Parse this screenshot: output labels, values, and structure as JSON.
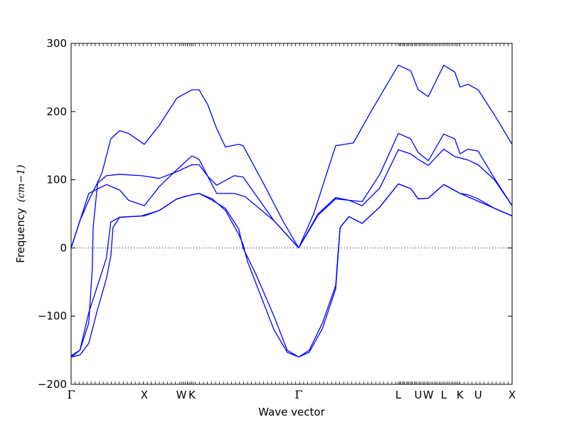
{
  "chart_data": {
    "type": "line",
    "title": "",
    "xlabel": "Wave vector",
    "ylabel": "Frequency",
    "ylabel_unit": "(cm−1)",
    "ylim": [
      -200,
      300
    ],
    "yticks": [
      -200,
      -100,
      0,
      100,
      200,
      300
    ],
    "ytick_labels": [
      "−200",
      "−100",
      "0",
      "100",
      "200",
      "300"
    ],
    "xlim": [
      0,
      1
    ],
    "x_labels": [
      {
        "label": "Γ",
        "x": 0.0
      },
      {
        "label": "X",
        "x": 0.166
      },
      {
        "label": "W",
        "x": 0.25
      },
      {
        "label": "K",
        "x": 0.274
      },
      {
        "label": "Γ",
        "x": 0.516
      },
      {
        "label": "L",
        "x": 0.742
      },
      {
        "label": "U",
        "x": 0.787
      },
      {
        "label": "W",
        "x": 0.81
      },
      {
        "label": "L",
        "x": 0.845
      },
      {
        "label": "K",
        "x": 0.882
      },
      {
        "label": "U",
        "x": 0.923
      },
      {
        "label": "X",
        "x": 1.0
      }
    ],
    "zero_line": true,
    "grid": false,
    "line_color": "#0000ff",
    "series": [
      {
        "values": [
          [
            0.0,
            -160
          ],
          [
            0.02,
            -157
          ],
          [
            0.04,
            -140
          ],
          [
            0.06,
            -90
          ],
          [
            0.08,
            -45
          ],
          [
            0.09,
            -12
          ],
          [
            0.095,
            30
          ],
          [
            0.11,
            45
          ],
          [
            0.16,
            47
          ],
          [
            0.2,
            55
          ],
          [
            0.24,
            72
          ],
          [
            0.26,
            76
          ],
          [
            0.29,
            80
          ],
          [
            0.32,
            72
          ],
          [
            0.35,
            55
          ],
          [
            0.38,
            20
          ],
          [
            0.39,
            5
          ],
          [
            0.4,
            -20
          ],
          [
            0.43,
            -70
          ],
          [
            0.46,
            -120
          ],
          [
            0.49,
            -153
          ],
          [
            0.516,
            -160
          ],
          [
            0.54,
            -153
          ],
          [
            0.57,
            -118
          ],
          [
            0.6,
            -60
          ],
          [
            0.605,
            -15
          ],
          [
            0.61,
            30
          ],
          [
            0.63,
            46
          ],
          [
            0.66,
            36
          ],
          [
            0.7,
            60
          ],
          [
            0.742,
            94
          ],
          [
            0.77,
            87
          ],
          [
            0.787,
            72
          ],
          [
            0.81,
            73
          ],
          [
            0.845,
            93
          ],
          [
            0.86,
            88
          ],
          [
            0.882,
            80
          ],
          [
            0.9,
            78
          ],
          [
            0.923,
            72
          ],
          [
            0.96,
            58
          ],
          [
            1.0,
            47
          ]
        ]
      },
      {
        "values": [
          [
            0.0,
            -158
          ],
          [
            0.02,
            -150
          ],
          [
            0.04,
            -110
          ],
          [
            0.048,
            -30
          ],
          [
            0.05,
            30
          ],
          [
            0.06,
            95
          ],
          [
            0.08,
            106
          ],
          [
            0.11,
            108
          ],
          [
            0.16,
            106
          ],
          [
            0.2,
            102
          ],
          [
            0.24,
            112
          ],
          [
            0.274,
            122
          ],
          [
            0.29,
            122
          ],
          [
            0.31,
            105
          ],
          [
            0.33,
            92
          ],
          [
            0.37,
            106
          ],
          [
            0.39,
            104
          ],
          [
            0.46,
            40
          ],
          [
            0.516,
            0
          ],
          [
            0.56,
            48
          ],
          [
            0.6,
            72
          ],
          [
            0.63,
            70
          ],
          [
            0.66,
            62
          ],
          [
            0.7,
            88
          ],
          [
            0.742,
            144
          ],
          [
            0.77,
            138
          ],
          [
            0.787,
            130
          ],
          [
            0.81,
            121
          ],
          [
            0.845,
            145
          ],
          [
            0.87,
            134
          ],
          [
            0.9,
            129
          ],
          [
            0.923,
            122
          ],
          [
            0.96,
            100
          ],
          [
            1.0,
            62
          ]
        ]
      },
      {
        "values": [
          [
            0.0,
            0
          ],
          [
            0.04,
            80
          ],
          [
            0.08,
            93
          ],
          [
            0.11,
            85
          ],
          [
            0.13,
            70
          ],
          [
            0.166,
            62
          ],
          [
            0.2,
            90
          ],
          [
            0.24,
            115
          ],
          [
            0.274,
            135
          ],
          [
            0.29,
            130
          ],
          [
            0.31,
            105
          ],
          [
            0.33,
            80
          ],
          [
            0.37,
            80
          ],
          [
            0.395,
            75
          ],
          [
            0.46,
            40
          ],
          [
            0.516,
            0
          ],
          [
            0.56,
            50
          ],
          [
            0.6,
            74
          ],
          [
            0.63,
            70
          ],
          [
            0.66,
            68
          ],
          [
            0.7,
            108
          ],
          [
            0.742,
            168
          ],
          [
            0.77,
            160
          ],
          [
            0.787,
            140
          ],
          [
            0.81,
            128
          ],
          [
            0.845,
            167
          ],
          [
            0.87,
            160
          ],
          [
            0.882,
            138
          ],
          [
            0.9,
            145
          ],
          [
            0.923,
            142
          ],
          [
            0.96,
            102
          ],
          [
            1.0,
            62
          ]
        ]
      },
      {
        "values": [
          [
            0.0,
            0
          ],
          [
            0.02,
            40
          ],
          [
            0.04,
            70
          ],
          [
            0.06,
            96
          ],
          [
            0.07,
            110
          ],
          [
            0.09,
            160
          ],
          [
            0.11,
            172
          ],
          [
            0.13,
            168
          ],
          [
            0.166,
            152
          ],
          [
            0.2,
            180
          ],
          [
            0.24,
            220
          ],
          [
            0.274,
            232
          ],
          [
            0.29,
            232
          ],
          [
            0.31,
            210
          ],
          [
            0.33,
            175
          ],
          [
            0.35,
            148
          ],
          [
            0.38,
            152
          ],
          [
            0.39,
            150
          ],
          [
            0.44,
            90
          ],
          [
            0.48,
            40
          ],
          [
            0.516,
            0
          ],
          [
            0.55,
            50
          ],
          [
            0.58,
            110
          ],
          [
            0.6,
            150
          ],
          [
            0.62,
            152
          ],
          [
            0.64,
            154
          ],
          [
            0.68,
            200
          ],
          [
            0.742,
            268
          ],
          [
            0.77,
            260
          ],
          [
            0.787,
            232
          ],
          [
            0.81,
            222
          ],
          [
            0.845,
            268
          ],
          [
            0.87,
            258
          ],
          [
            0.882,
            236
          ],
          [
            0.9,
            240
          ],
          [
            0.923,
            232
          ],
          [
            0.96,
            195
          ],
          [
            1.0,
            152
          ]
        ]
      },
      {
        "values": [
          [
            0.0,
            -160
          ],
          [
            0.02,
            -150
          ],
          [
            0.04,
            -95
          ],
          [
            0.06,
            -55
          ],
          [
            0.08,
            -15
          ],
          [
            0.09,
            38
          ],
          [
            0.11,
            45
          ],
          [
            0.166,
            47
          ],
          [
            0.2,
            55
          ],
          [
            0.24,
            72
          ],
          [
            0.274,
            78
          ],
          [
            0.29,
            80
          ],
          [
            0.32,
            70
          ],
          [
            0.35,
            58
          ],
          [
            0.38,
            28
          ],
          [
            0.39,
            0
          ],
          [
            0.42,
            -40
          ],
          [
            0.46,
            -100
          ],
          [
            0.49,
            -150
          ],
          [
            0.516,
            -160
          ],
          [
            0.54,
            -150
          ],
          [
            0.57,
            -110
          ],
          [
            0.6,
            -55
          ],
          [
            0.605,
            -10
          ],
          [
            0.61,
            30
          ],
          [
            0.63,
            46
          ],
          [
            0.66,
            36
          ],
          [
            0.7,
            60
          ],
          [
            0.742,
            94
          ],
          [
            0.77,
            87
          ],
          [
            0.787,
            72
          ],
          [
            0.81,
            73
          ],
          [
            0.845,
            93
          ],
          [
            0.882,
            80
          ],
          [
            1.0,
            47
          ]
        ]
      }
    ]
  }
}
